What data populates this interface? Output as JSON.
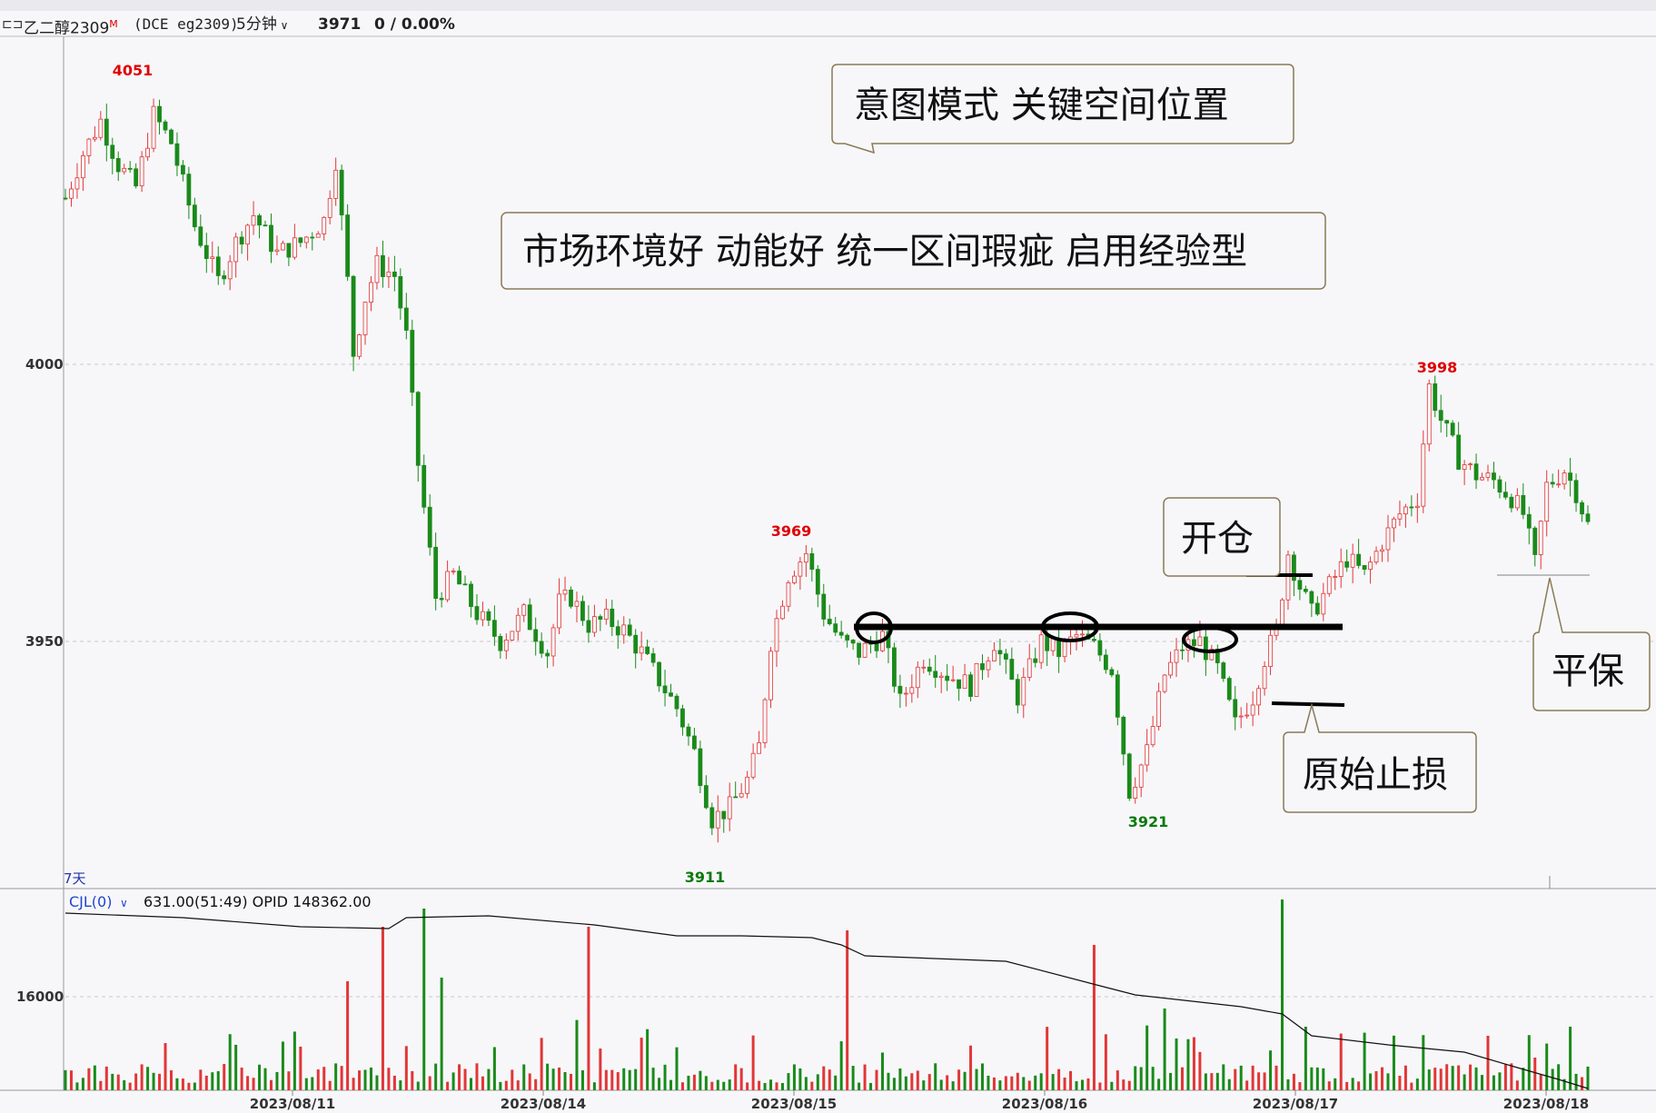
{
  "header": {
    "symbol_name": "乙二醇2309",
    "symbol_mark": "M",
    "symbol_code": "(DCE eg2309)",
    "period": "5分钟",
    "last_price": "3971",
    "change": "0 / 0.00%"
  },
  "volume_panel": {
    "indicator": "CJL(0)",
    "values": "631.00(51:49)  OPID 148362.00",
    "span_label": "7天"
  },
  "annotations": {
    "mode_box": "意图模式  关键空间位置",
    "context_box": "市场环境好  动能好  统一区间瑕疵  启用经验型",
    "open_label": "开仓",
    "stop_label": "原始止损",
    "breakeven_label": "平保"
  },
  "colors": {
    "up": "#e23636",
    "down": "#1a8a1a",
    "high_label": "#e00000",
    "low_label": "#0a7a0a",
    "oi_line": "#111111",
    "grid": "#c8c8c8"
  },
  "chart_data": [
    {
      "type": "candlestick",
      "title": "",
      "ylim": [
        3905,
        4055
      ],
      "yticks": [
        3950,
        4000
      ],
      "xticks": [
        "2023/08/11",
        "2023/08/14",
        "2023/08/15",
        "2023/08/16",
        "2023/08/17",
        "2023/08/18"
      ],
      "marked_points": [
        {
          "label": "4051",
          "kind": "high",
          "price": 4051,
          "date": "2023/08/10"
        },
        {
          "label": "3969",
          "kind": "high",
          "price": 3969,
          "date": "2023/08/15"
        },
        {
          "label": "3998",
          "kind": "high",
          "price": 3998,
          "date": "2023/08/17"
        },
        {
          "label": "3911",
          "kind": "low",
          "price": 3911,
          "date": "2023/08/14"
        },
        {
          "label": "3921",
          "kind": "low",
          "price": 3921,
          "date": "2023/08/16"
        }
      ],
      "levels": [
        {
          "name": "",
          "price": 3953
        },
        {
          "name": "开仓",
          "price": 3963
        },
        {
          "name": "原始止损",
          "price": 3940
        },
        {
          "name": "平保",
          "price": 3963
        }
      ],
      "path_points": [
        [
          0,
          4030
        ],
        [
          3,
          4038
        ],
        [
          6,
          4044
        ],
        [
          9,
          4036
        ],
        [
          12,
          4032
        ],
        [
          15,
          4045
        ],
        [
          18,
          4040
        ],
        [
          22,
          4025
        ],
        [
          26,
          4015
        ],
        [
          29,
          4022
        ],
        [
          32,
          4027
        ],
        [
          36,
          4020
        ],
        [
          40,
          4022
        ],
        [
          44,
          4026
        ],
        [
          46,
          4037
        ],
        [
          48,
          4015
        ],
        [
          49,
          4002
        ],
        [
          51,
          4012
        ],
        [
          53,
          4018
        ],
        [
          56,
          4016
        ],
        [
          58,
          4005
        ],
        [
          59,
          3993
        ],
        [
          60,
          3982
        ],
        [
          63,
          3958
        ],
        [
          66,
          3962
        ],
        [
          70,
          3955
        ],
        [
          74,
          3950
        ],
        [
          78,
          3955
        ],
        [
          82,
          3948
        ],
        [
          84,
          3957
        ],
        [
          86,
          3958
        ],
        [
          89,
          3953
        ],
        [
          92,
          3954
        ],
        [
          95,
          3952
        ],
        [
          98,
          3948
        ],
        [
          101,
          3943
        ],
        [
          104,
          3938
        ],
        [
          107,
          3930
        ],
        [
          110,
          3918
        ],
        [
          113,
          3920
        ],
        [
          116,
          3925
        ],
        [
          118,
          3931
        ],
        [
          120,
          3950
        ],
        [
          123,
          3962
        ],
        [
          126,
          3966
        ],
        [
          129,
          3955
        ],
        [
          132,
          3950
        ],
        [
          135,
          3948
        ],
        [
          139,
          3951
        ],
        [
          142,
          3939
        ],
        [
          146,
          3947
        ],
        [
          150,
          3944
        ],
        [
          154,
          3942
        ],
        [
          158,
          3950
        ],
        [
          162,
          3940
        ],
        [
          166,
          3950
        ],
        [
          169,
          3948
        ],
        [
          172,
          3951
        ],
        [
          175,
          3949
        ],
        [
          178,
          3945
        ],
        [
          181,
          3923
        ],
        [
          184,
          3930
        ],
        [
          187,
          3944
        ],
        [
          190,
          3949
        ],
        [
          193,
          3950
        ],
        [
          196,
          3945
        ],
        [
          199,
          3935
        ],
        [
          202,
          3940
        ],
        [
          204,
          3947
        ],
        [
          206,
          3952
        ],
        [
          208,
          3966
        ],
        [
          210,
          3960
        ],
        [
          212,
          3955
        ],
        [
          215,
          3960
        ],
        [
          218,
          3965
        ],
        [
          221,
          3962
        ],
        [
          224,
          3968
        ],
        [
          227,
          3973
        ],
        [
          230,
          3976
        ],
        [
          232,
          3996
        ],
        [
          234,
          3990
        ],
        [
          237,
          3983
        ],
        [
          240,
          3980
        ],
        [
          243,
          3979
        ],
        [
          246,
          3976
        ],
        [
          248,
          3973
        ],
        [
          250,
          3964
        ],
        [
          252,
          3978
        ],
        [
          255,
          3981
        ],
        [
          257,
          3977
        ],
        [
          259,
          3971
        ]
      ]
    },
    {
      "type": "bar",
      "title": "",
      "series": [
        {
          "values": []
        }
      ],
      "yticks": [
        16000
      ],
      "note": "volume bars with open-interest line"
    }
  ]
}
